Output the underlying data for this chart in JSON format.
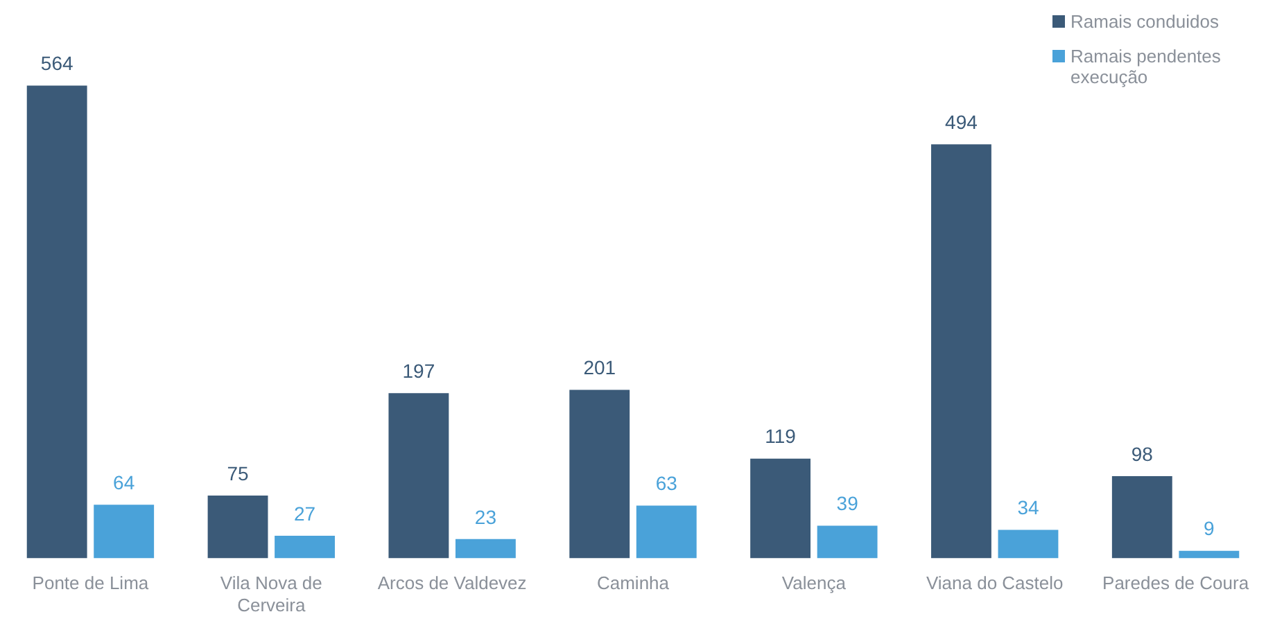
{
  "chart_data": {
    "type": "bar",
    "categories": [
      "Ponte de Lima",
      "Vila Nova de Cerveira",
      "Arcos de Valdevez",
      "Caminha",
      "Valença",
      "Viana do Castelo",
      "Paredes de Coura"
    ],
    "series": [
      {
        "name": "Ramais conduidos",
        "color": "#3b5a78",
        "values": [
          564,
          75,
          197,
          201,
          119,
          494,
          98
        ]
      },
      {
        "name": "Ramais pendentes execução",
        "color": "#4aa2d9",
        "values": [
          64,
          27,
          23,
          63,
          39,
          34,
          9
        ]
      }
    ],
    "data_labels": true,
    "legend": "top right",
    "grid": false
  }
}
